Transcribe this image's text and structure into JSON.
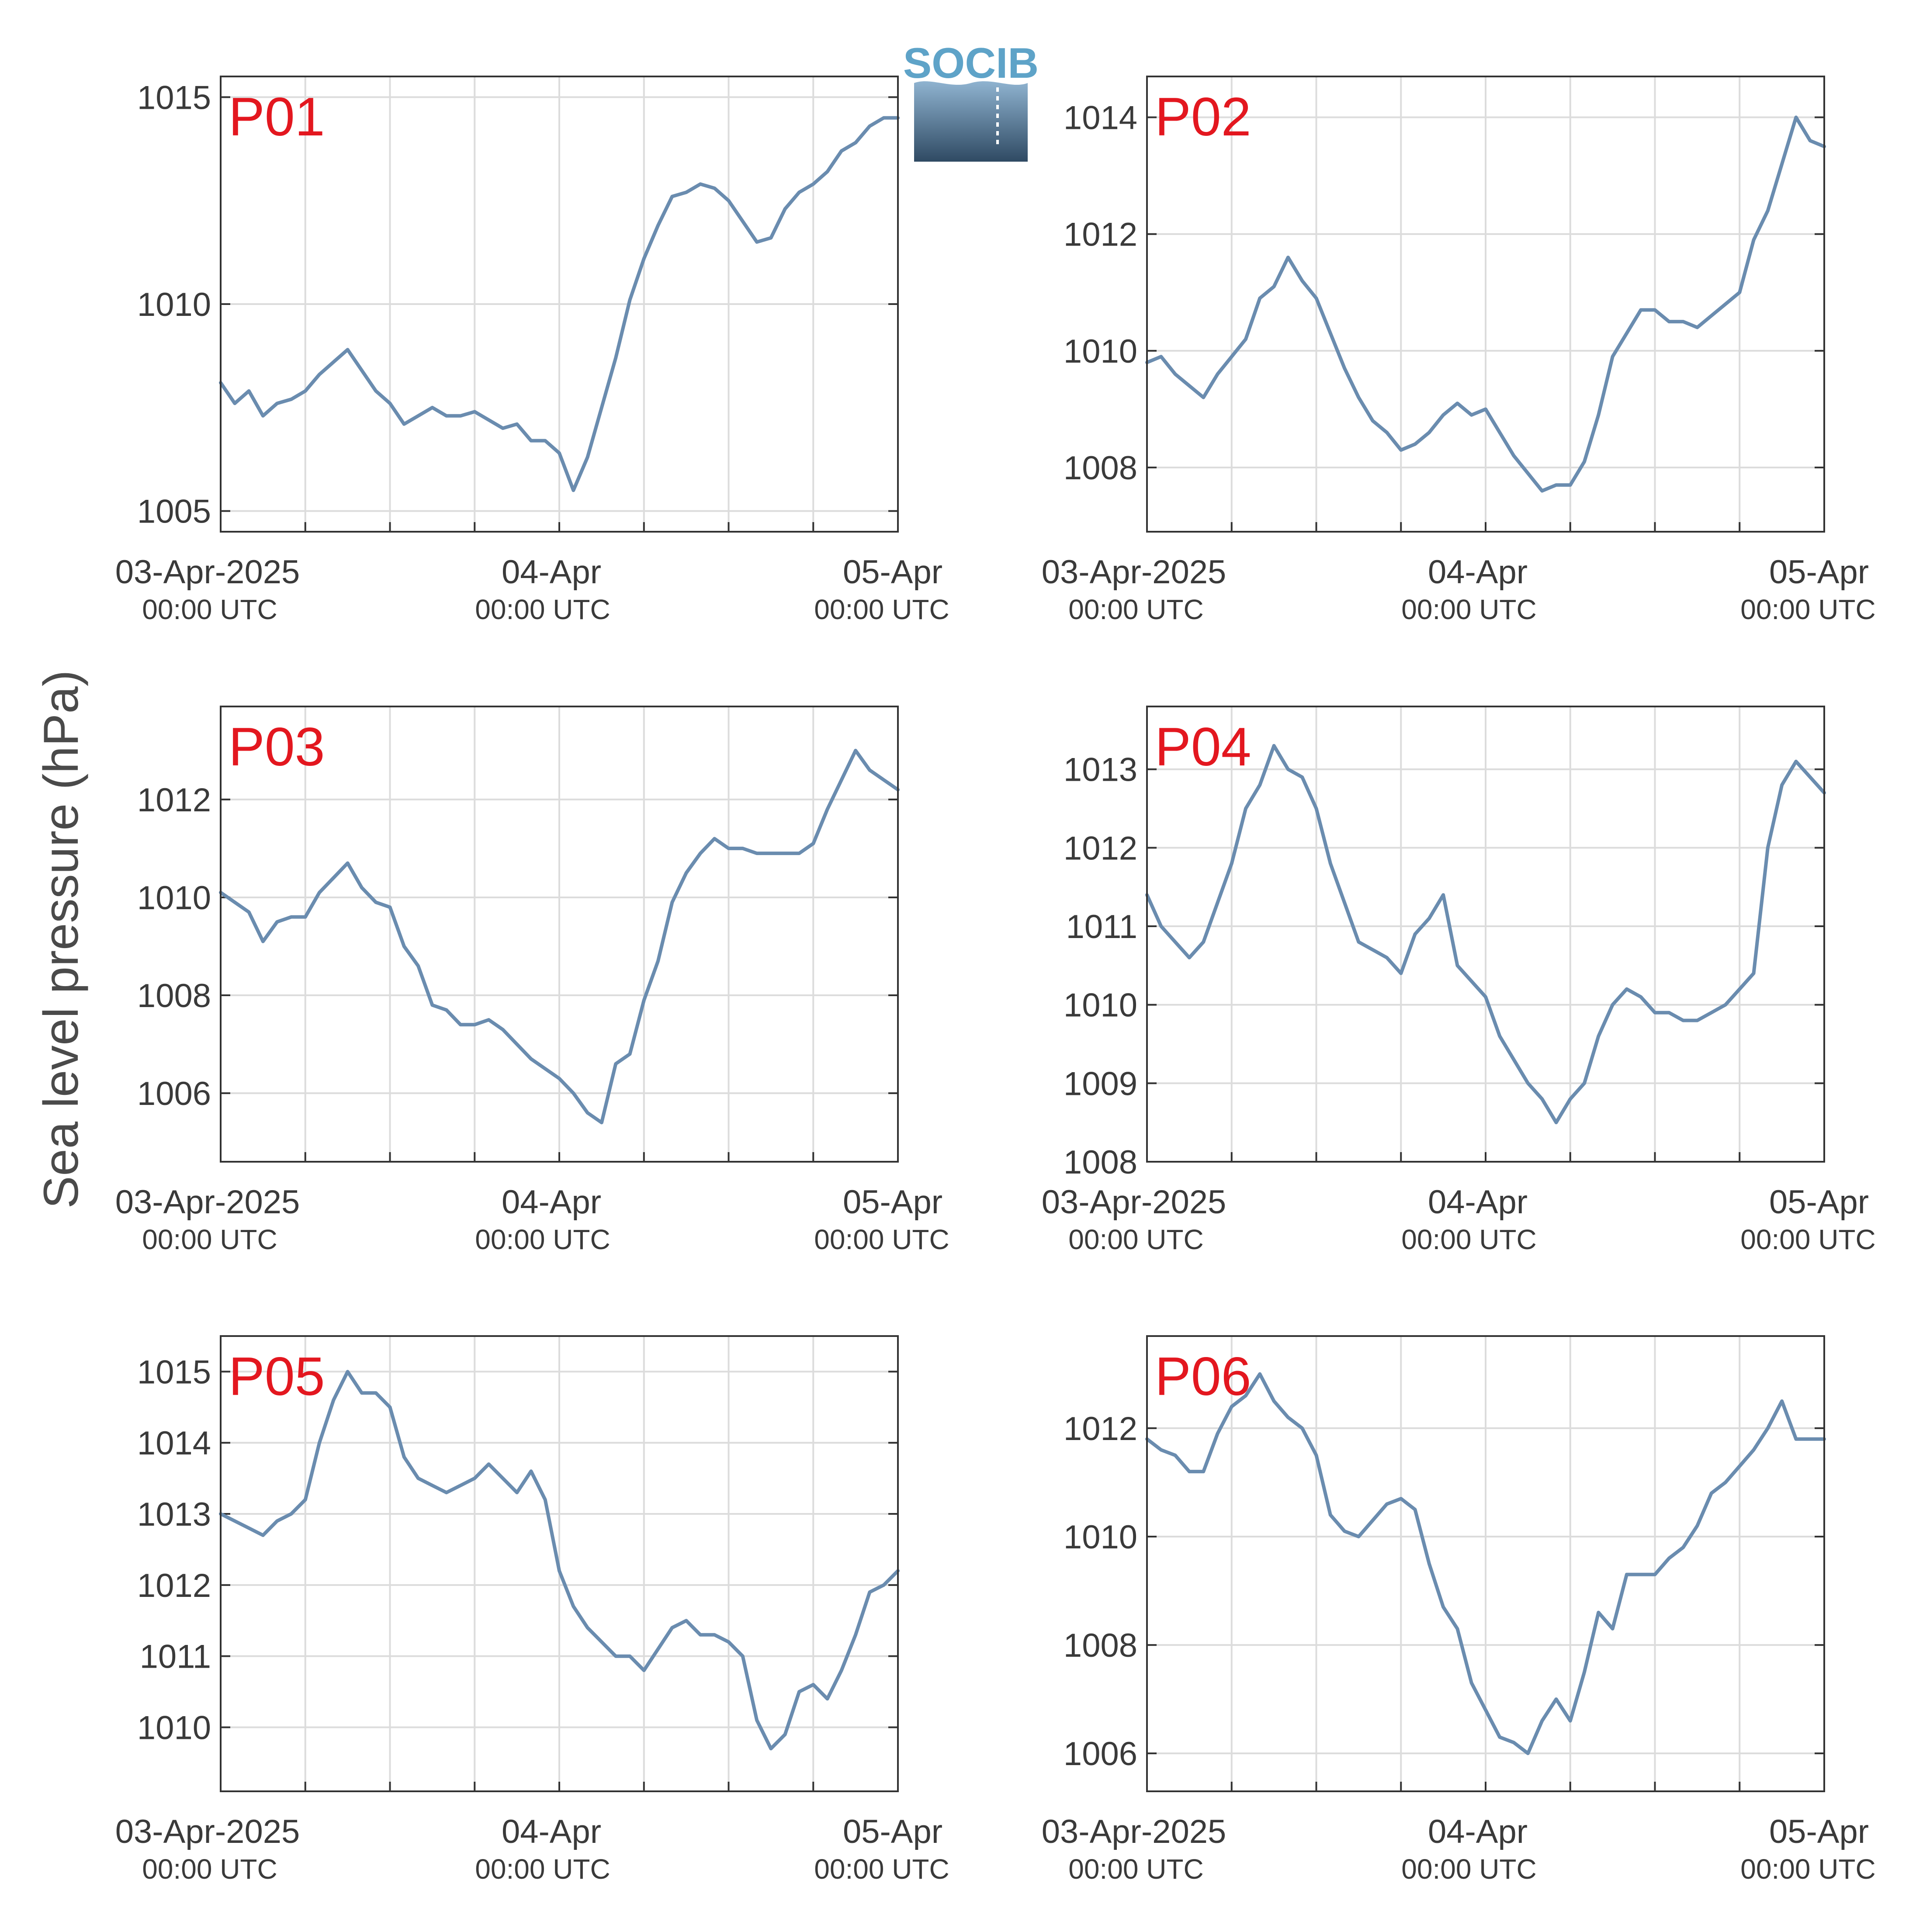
{
  "figure": {
    "ylabel": "Sea level pressure (hPa)",
    "logo_text": "SOCIB",
    "line_color": "#6a8caf",
    "label_color": "#e3171f",
    "grid_color": "#dcdcdc"
  },
  "chart_data": [
    {
      "type": "line",
      "panel_label": "P01",
      "x": [
        0,
        1,
        2,
        3,
        4,
        5,
        6,
        7,
        8,
        9,
        10,
        11,
        12,
        13,
        14,
        15,
        16,
        17,
        18,
        19,
        20,
        21,
        22,
        23,
        24,
        25,
        26,
        27,
        28,
        29,
        30,
        31,
        32,
        33,
        34,
        35,
        36,
        37,
        38,
        39,
        40,
        41,
        42,
        43,
        44,
        45,
        46,
        47,
        48
      ],
      "values": [
        1008.1,
        1007.6,
        1007.9,
        1007.3,
        1007.6,
        1007.7,
        1007.9,
        1008.3,
        1008.6,
        1008.9,
        1008.4,
        1007.9,
        1007.6,
        1007.1,
        1007.3,
        1007.5,
        1007.3,
        1007.3,
        1007.4,
        1007.2,
        1007.0,
        1007.1,
        1006.7,
        1006.7,
        1006.4,
        1005.5,
        1006.3,
        1007.5,
        1008.7,
        1010.1,
        1011.1,
        1011.9,
        1012.6,
        1012.7,
        1012.9,
        1012.8,
        1012.5,
        1012.0,
        1011.5,
        1011.6,
        1012.3,
        1012.7,
        1012.9,
        1013.2,
        1013.7,
        1013.9,
        1014.3,
        1014.5,
        1014.5
      ],
      "yticks": [
        1005,
        1010,
        1015
      ],
      "ylim": [
        1004.5,
        1015.5
      ],
      "xticks": [
        "03-Apr-2025",
        "04-Apr",
        "05-Apr"
      ],
      "xtick_sublabels": [
        "00:00 UTC",
        "00:00 UTC",
        "00:00 UTC"
      ]
    },
    {
      "type": "line",
      "panel_label": "P02",
      "x": [
        0,
        1,
        2,
        3,
        4,
        5,
        6,
        7,
        8,
        9,
        10,
        11,
        12,
        13,
        14,
        15,
        16,
        17,
        18,
        19,
        20,
        21,
        22,
        23,
        24,
        25,
        26,
        27,
        28,
        29,
        30,
        31,
        32,
        33,
        34,
        35,
        36,
        37,
        38,
        39,
        40,
        41,
        42,
        43,
        44,
        45,
        46,
        47,
        48
      ],
      "values": [
        1009.8,
        1009.9,
        1009.6,
        1009.4,
        1009.2,
        1009.6,
        1009.9,
        1010.2,
        1010.9,
        1011.1,
        1011.6,
        1011.2,
        1010.9,
        1010.3,
        1009.7,
        1009.2,
        1008.8,
        1008.6,
        1008.3,
        1008.4,
        1008.6,
        1008.9,
        1009.1,
        1008.9,
        1009.0,
        1008.6,
        1008.2,
        1007.9,
        1007.6,
        1007.7,
        1007.7,
        1008.1,
        1008.9,
        1009.9,
        1010.3,
        1010.7,
        1010.7,
        1010.5,
        1010.5,
        1010.4,
        1010.6,
        1010.8,
        1011.0,
        1011.9,
        1012.4,
        1013.2,
        1014.0,
        1013.6,
        1013.5
      ],
      "yticks": [
        1008,
        1010,
        1012,
        1014
      ],
      "ylim": [
        1006.9,
        1014.7
      ],
      "xticks": [
        "03-Apr-2025",
        "04-Apr",
        "05-Apr"
      ],
      "xtick_sublabels": [
        "00:00 UTC",
        "00:00 UTC",
        "00:00 UTC"
      ]
    },
    {
      "type": "line",
      "panel_label": "P03",
      "x": [
        0,
        1,
        2,
        3,
        4,
        5,
        6,
        7,
        8,
        9,
        10,
        11,
        12,
        13,
        14,
        15,
        16,
        17,
        18,
        19,
        20,
        21,
        22,
        23,
        24,
        25,
        26,
        27,
        28,
        29,
        30,
        31,
        32,
        33,
        34,
        35,
        36,
        37,
        38,
        39,
        40,
        41,
        42,
        43,
        44,
        45,
        46,
        47,
        48
      ],
      "values": [
        1010.1,
        1009.9,
        1009.7,
        1009.1,
        1009.5,
        1009.6,
        1009.6,
        1010.1,
        1010.4,
        1010.7,
        1010.2,
        1009.9,
        1009.8,
        1009.0,
        1008.6,
        1007.8,
        1007.7,
        1007.4,
        1007.4,
        1007.5,
        1007.3,
        1007.0,
        1006.7,
        1006.5,
        1006.3,
        1006.0,
        1005.6,
        1005.4,
        1006.6,
        1006.8,
        1007.9,
        1008.7,
        1009.9,
        1010.5,
        1010.9,
        1011.2,
        1011.0,
        1011.0,
        1010.9,
        1010.9,
        1010.9,
        1010.9,
        1011.1,
        1011.8,
        1012.4,
        1013.0,
        1012.6,
        1012.4,
        1012.2
      ],
      "yticks": [
        1006,
        1008,
        1010,
        1012
      ],
      "ylim": [
        1004.6,
        1013.9
      ],
      "xticks": [
        "03-Apr-2025",
        "04-Apr",
        "05-Apr"
      ],
      "xtick_sublabels": [
        "00:00 UTC",
        "00:00 UTC",
        "00:00 UTC"
      ]
    },
    {
      "type": "line",
      "panel_label": "P04",
      "x": [
        0,
        1,
        2,
        3,
        4,
        5,
        6,
        7,
        8,
        9,
        10,
        11,
        12,
        13,
        14,
        15,
        16,
        17,
        18,
        19,
        20,
        21,
        22,
        23,
        24,
        25,
        26,
        27,
        28,
        29,
        30,
        31,
        32,
        33,
        34,
        35,
        36,
        37,
        38,
        39,
        40,
        41,
        42,
        43,
        44,
        45,
        46,
        47,
        48
      ],
      "values": [
        1011.4,
        1011.0,
        1010.8,
        1010.6,
        1010.8,
        1011.3,
        1011.8,
        1012.5,
        1012.8,
        1013.3,
        1013.0,
        1012.9,
        1012.5,
        1011.8,
        1011.3,
        1010.8,
        1010.7,
        1010.6,
        1010.4,
        1010.9,
        1011.1,
        1011.4,
        1010.5,
        1010.3,
        1010.1,
        1009.6,
        1009.3,
        1009.0,
        1008.8,
        1008.5,
        1008.8,
        1009.0,
        1009.6,
        1010.0,
        1010.2,
        1010.1,
        1009.9,
        1009.9,
        1009.8,
        1009.8,
        1009.9,
        1010.0,
        1010.2,
        1010.4,
        1012.0,
        1012.8,
        1013.1,
        1012.9,
        1012.7
      ],
      "yticks": [
        1008,
        1009,
        1010,
        1011,
        1012,
        1013
      ],
      "ylim": [
        1008,
        1013.8
      ],
      "xticks": [
        "03-Apr-2025",
        "04-Apr",
        "05-Apr"
      ],
      "xtick_sublabels": [
        "00:00 UTC",
        "00:00 UTC",
        "00:00 UTC"
      ]
    },
    {
      "type": "line",
      "panel_label": "P05",
      "x": [
        0,
        1,
        2,
        3,
        4,
        5,
        6,
        7,
        8,
        9,
        10,
        11,
        12,
        13,
        14,
        15,
        16,
        17,
        18,
        19,
        20,
        21,
        22,
        23,
        24,
        25,
        26,
        27,
        28,
        29,
        30,
        31,
        32,
        33,
        34,
        35,
        36,
        37,
        38,
        39,
        40,
        41,
        42,
        43,
        44,
        45,
        46,
        47,
        48
      ],
      "values": [
        1013.0,
        1012.9,
        1012.8,
        1012.7,
        1012.9,
        1013.0,
        1013.2,
        1014.0,
        1014.6,
        1015.0,
        1014.7,
        1014.7,
        1014.5,
        1013.8,
        1013.5,
        1013.4,
        1013.3,
        1013.4,
        1013.5,
        1013.7,
        1013.5,
        1013.3,
        1013.6,
        1013.2,
        1012.2,
        1011.7,
        1011.4,
        1011.2,
        1011.0,
        1011.0,
        1010.8,
        1011.1,
        1011.4,
        1011.5,
        1011.3,
        1011.3,
        1011.2,
        1011.0,
        1010.1,
        1009.7,
        1009.9,
        1010.5,
        1010.6,
        1010.4,
        1010.8,
        1011.3,
        1011.9,
        1012.0,
        1012.2
      ],
      "yticks": [
        1010,
        1011,
        1012,
        1013,
        1014,
        1015
      ],
      "ylim": [
        1009.1,
        1015.5
      ],
      "xticks": [
        "03-Apr-2025",
        "04-Apr",
        "05-Apr"
      ],
      "xtick_sublabels": [
        "00:00 UTC",
        "00:00 UTC",
        "00:00 UTC"
      ]
    },
    {
      "type": "line",
      "panel_label": "P06",
      "x": [
        0,
        1,
        2,
        3,
        4,
        5,
        6,
        7,
        8,
        9,
        10,
        11,
        12,
        13,
        14,
        15,
        16,
        17,
        18,
        19,
        20,
        21,
        22,
        23,
        24,
        25,
        26,
        27,
        28,
        29,
        30,
        31,
        32,
        33,
        34,
        35,
        36,
        37,
        38,
        39,
        40,
        41,
        42,
        43,
        44,
        45,
        46,
        47,
        48
      ],
      "values": [
        1011.8,
        1011.6,
        1011.5,
        1011.2,
        1011.2,
        1011.9,
        1012.4,
        1012.6,
        1013.0,
        1012.5,
        1012.2,
        1012.0,
        1011.5,
        1010.4,
        1010.1,
        1010.0,
        1010.3,
        1010.6,
        1010.7,
        1010.5,
        1009.5,
        1008.7,
        1008.3,
        1007.3,
        1006.8,
        1006.3,
        1006.2,
        1006.0,
        1006.6,
        1007.0,
        1006.6,
        1007.5,
        1008.6,
        1008.3,
        1009.3,
        1009.3,
        1009.3,
        1009.6,
        1009.8,
        1010.2,
        1010.8,
        1011.0,
        1011.3,
        1011.6,
        1012.0,
        1012.5,
        1011.8,
        1011.8,
        1011.8
      ],
      "yticks": [
        1006,
        1008,
        1010,
        1012
      ],
      "ylim": [
        1005.3,
        1013.7
      ],
      "xticks": [
        "03-Apr-2025",
        "04-Apr",
        "05-Apr"
      ],
      "xtick_sublabels": [
        "00:00 UTC",
        "00:00 UTC",
        "00:00 UTC"
      ]
    }
  ]
}
